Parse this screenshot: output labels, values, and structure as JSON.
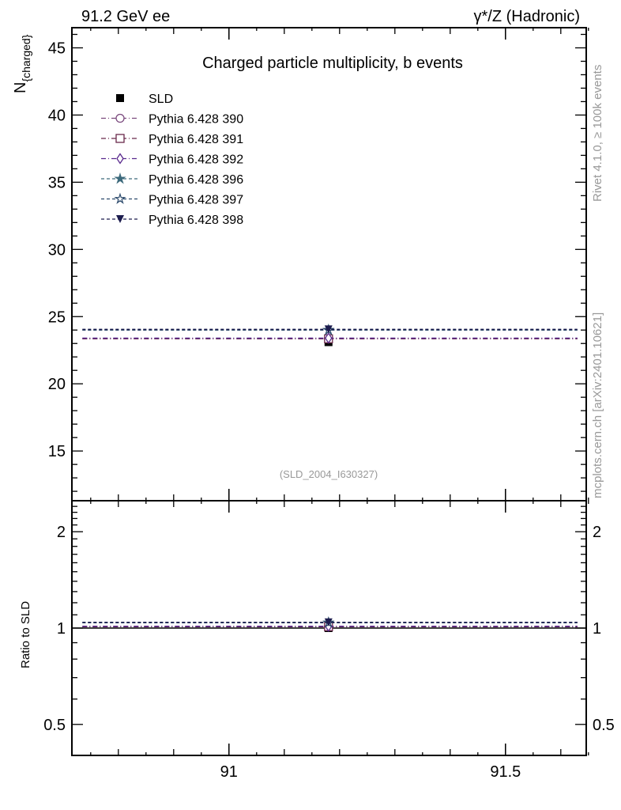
{
  "chart_data": {
    "type": "scatter",
    "title": "Charged particle multiplicity, b events",
    "top_left_label": "91.2 GeV ee",
    "top_right_label": "γ*/Z (Hadronic)",
    "ylabel": "N",
    "ylabel_sub": "{charged}",
    "ratio_ylabel": "Ratio to SLD",
    "analysis_label": "(SLD_2004_I630327)",
    "side_label_1": "Rivet 4.1.0, ≥ 100k events",
    "side_label_2": "mcplots.cern.ch [arXiv:2401.10621]",
    "xlim": [
      90.716,
      91.646
    ],
    "ylim": [
      11.3,
      46.5
    ],
    "ratio_ylim": [
      0.4,
      2.5
    ],
    "ratio_scale": "log",
    "x_ticks": [
      {
        "v": 91,
        "label": "91"
      },
      {
        "v": 91.5,
        "label": "91.5"
      }
    ],
    "y_ticks": [
      {
        "v": 15,
        "label": "15"
      },
      {
        "v": 20,
        "label": "20"
      },
      {
        "v": 25,
        "label": "25"
      },
      {
        "v": 30,
        "label": "30"
      },
      {
        "v": 35,
        "label": "35"
      },
      {
        "v": 40,
        "label": "40"
      },
      {
        "v": 45,
        "label": "45"
      }
    ],
    "ratio_ticks": [
      {
        "v": 0.5,
        "label": "0.5"
      },
      {
        "v": 1,
        "label": "1"
      },
      {
        "v": 2,
        "label": "2"
      }
    ],
    "bin": [
      90.735,
      91.63
    ],
    "x_point": 91.18,
    "legend_position": "top-left",
    "series": [
      {
        "name": "SLD",
        "value": 23.1,
        "ratio": 1.0,
        "color": "#000000",
        "marker": "filled-square",
        "dash": ""
      },
      {
        "name": "Pythia 6.428 390",
        "value": 23.35,
        "ratio": 1.01,
        "color": "#7b4a7e",
        "marker": "open-circle",
        "dash": "6,3,1,3"
      },
      {
        "name": "Pythia 6.428 391",
        "value": 23.35,
        "ratio": 1.01,
        "color": "#6a2a4c",
        "marker": "open-square",
        "dash": "6,3,1,3"
      },
      {
        "name": "Pythia 6.428 392",
        "value": 23.4,
        "ratio": 1.013,
        "color": "#5a2a8e",
        "marker": "open-diamond",
        "dash": "6,3,1,3"
      },
      {
        "name": "Pythia 6.428 396",
        "value": 24.0,
        "ratio": 1.04,
        "color": "#3d6a7c",
        "marker": "filled-star",
        "dash": "4,3"
      },
      {
        "name": "Pythia 6.428 397",
        "value": 24.0,
        "ratio": 1.04,
        "color": "#2c4a6c",
        "marker": "open-star",
        "dash": "4,3"
      },
      {
        "name": "Pythia 6.428 398",
        "value": 24.05,
        "ratio": 1.042,
        "color": "#1c1c4e",
        "marker": "filled-triangle-down",
        "dash": "4,3"
      }
    ]
  }
}
